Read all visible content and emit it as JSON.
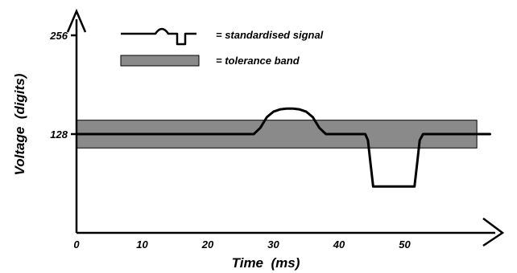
{
  "chart_data": {
    "type": "line",
    "xlabel": "Time  (ms)",
    "ylabel": "Voltage  (digits)",
    "x_ticks": [
      0,
      10,
      20,
      30,
      40,
      50
    ],
    "y_ticks": [
      128,
      256
    ],
    "xlim": [
      0,
      64
    ],
    "ylim": [
      0,
      275
    ],
    "legend": [
      {
        "name": "= standardised signal",
        "kind": "line"
      },
      {
        "name": "= tolerance band",
        "kind": "band"
      }
    ],
    "legend_position": "top",
    "band": {
      "x_start": 0,
      "x_end": 61,
      "y_low": 110,
      "y_high": 146
    },
    "signal": {
      "x": [
        0,
        27,
        28,
        29,
        30,
        31,
        32,
        33,
        34,
        35,
        36,
        37,
        38,
        44,
        44.4,
        44.8,
        45.2,
        51.5,
        51.9,
        52.3,
        52.8,
        63
      ],
      "y": [
        128,
        128,
        136,
        150,
        157,
        160,
        161,
        161,
        160,
        157,
        150,
        136,
        128,
        128,
        120,
        90,
        60,
        60,
        90,
        120,
        128,
        128
      ]
    },
    "colors": {
      "band_fill": "#8a8a8a",
      "band_stroke": "#000000",
      "signal": "#000000",
      "axis": "#000000"
    }
  }
}
